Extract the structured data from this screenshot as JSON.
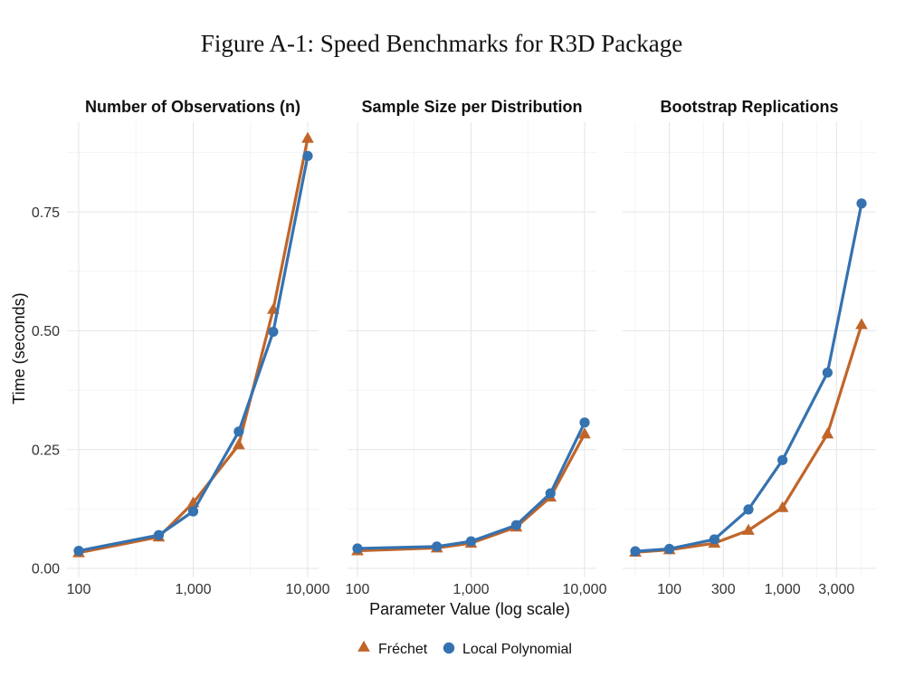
{
  "colors": {
    "frechet": "#C0652A",
    "local_poly": "#3572B0"
  },
  "chart_data": {
    "type": "line",
    "title": "Figure A-1: Speed Benchmarks for R3D Package",
    "xlabel": "Parameter Value (log scale)",
    "ylabel": "Time (seconds)",
    "ylim": [
      0,
      0.9
    ],
    "y_ticks": [
      0,
      0.25,
      0.5,
      0.75
    ],
    "y_tick_labels": [
      "0.00",
      "0.25",
      "0.50",
      "0.75"
    ],
    "legend": {
      "position": "bottom",
      "entries": [
        "Fréchet",
        "Local Polynomial"
      ]
    },
    "panels": [
      {
        "title": "Number of Observations (n)",
        "xlim": [
          100,
          10000
        ],
        "x_ticks": [
          100,
          1000,
          10000
        ],
        "x_tick_labels": [
          "100",
          "1,000",
          "10,000"
        ],
        "x_minor": [
          316,
          3162
        ],
        "series": [
          {
            "name": "Fréchet",
            "x": [
              100,
              500,
              1000,
              2500,
              5000,
              10000
            ],
            "values": [
              0.033,
              0.066,
              0.138,
              0.26,
              0.545,
              0.905
            ]
          },
          {
            "name": "Local Polynomial",
            "x": [
              100,
              500,
              1000,
              2500,
              5000,
              10000
            ],
            "values": [
              0.037,
              0.07,
              0.12,
              0.288,
              0.498,
              0.868
            ]
          }
        ]
      },
      {
        "title": "Sample Size per Distribution",
        "xlim": [
          100,
          10000
        ],
        "x_ticks": [
          100,
          1000,
          10000
        ],
        "x_tick_labels": [
          "100",
          "1,000",
          "10,000"
        ],
        "x_minor": [
          316,
          3162
        ],
        "series": [
          {
            "name": "Fréchet",
            "x": [
              100,
              500,
              1000,
              2500,
              5000,
              10000
            ],
            "values": [
              0.037,
              0.043,
              0.053,
              0.087,
              0.15,
              0.283
            ]
          },
          {
            "name": "Local Polynomial",
            "x": [
              100,
              500,
              1000,
              2500,
              5000,
              10000
            ],
            "values": [
              0.042,
              0.046,
              0.057,
              0.091,
              0.158,
              0.307
            ]
          }
        ]
      },
      {
        "title": "Bootstrap Replications",
        "xlim": [
          50,
          5000
        ],
        "x_ticks": [
          100,
          300,
          1000,
          3000
        ],
        "x_tick_labels": [
          "100",
          "300",
          "1,000",
          "3,000"
        ],
        "x_minor": [
          50,
          200,
          500,
          2000,
          5000
        ],
        "series": [
          {
            "name": "Fréchet",
            "x": [
              50,
              100,
              250,
              500,
              1000,
              2500,
              5000
            ],
            "values": [
              0.034,
              0.039,
              0.053,
              0.08,
              0.128,
              0.283,
              0.513
            ]
          },
          {
            "name": "Local Polynomial",
            "x": [
              50,
              100,
              250,
              500,
              1000,
              2500,
              5000
            ],
            "values": [
              0.036,
              0.041,
              0.061,
              0.124,
              0.228,
              0.412,
              0.768
            ]
          }
        ]
      }
    ]
  }
}
